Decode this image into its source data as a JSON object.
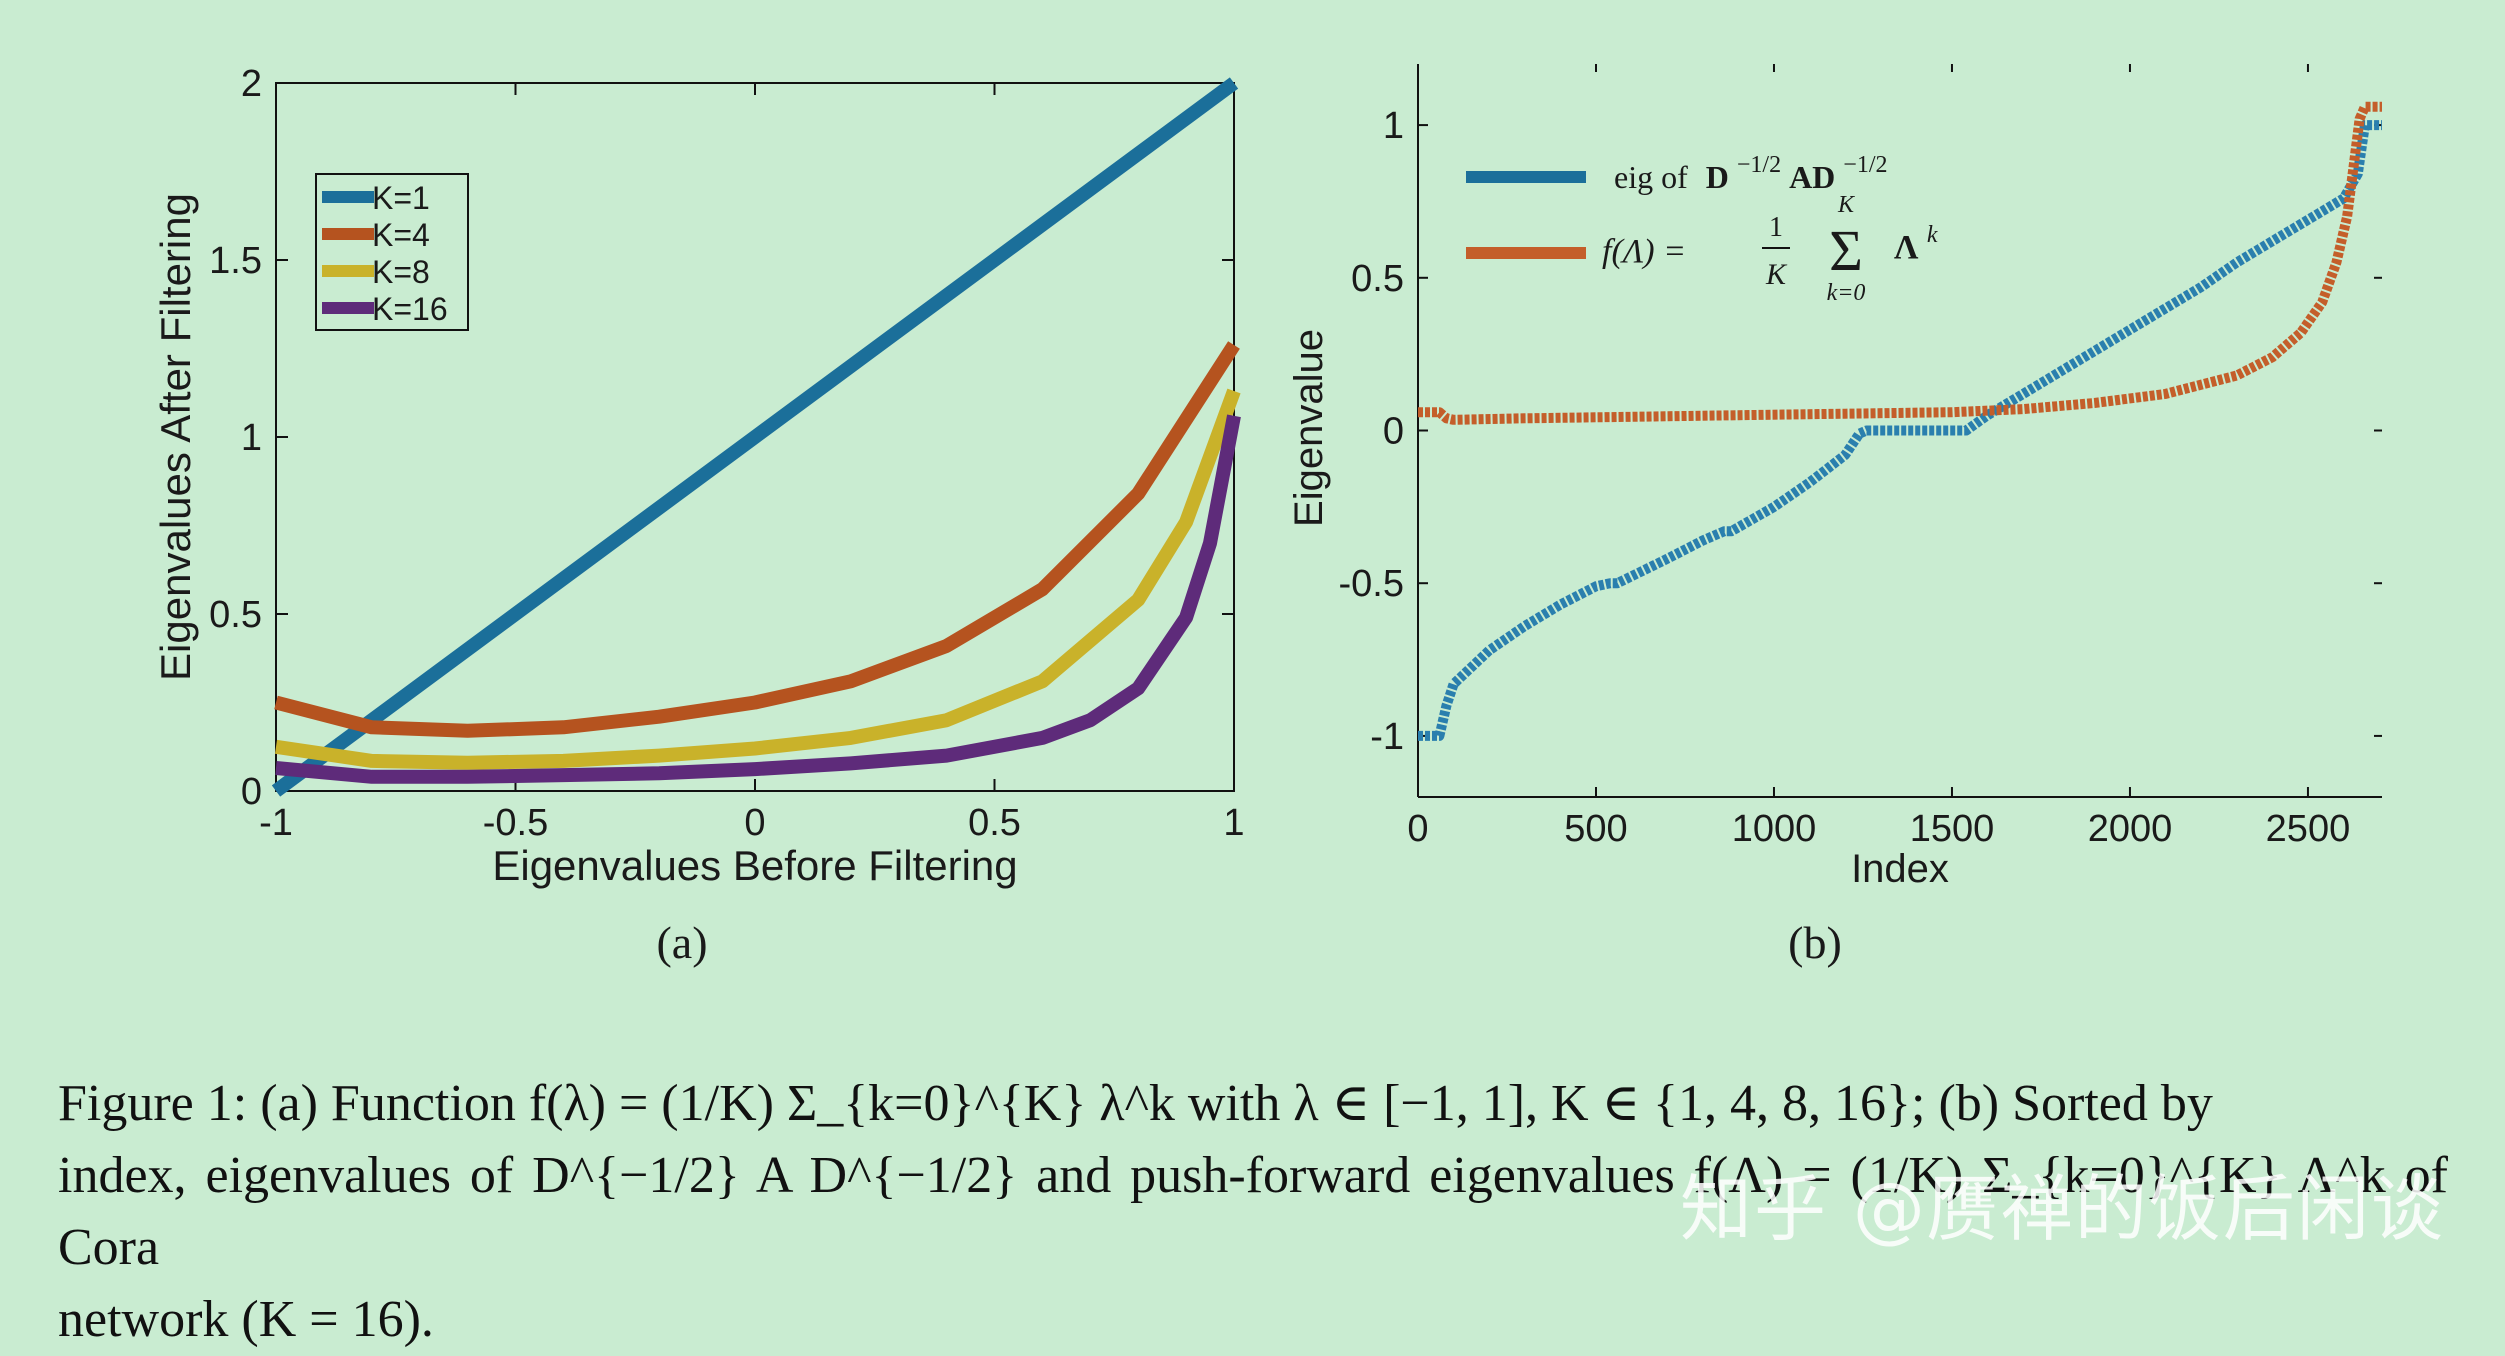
{
  "chart_data": [
    {
      "type": "line",
      "panel_label": "(a)",
      "xlabel": "Eigenvalues Before Filtering",
      "ylabel": "Eigenvalues After Filtering",
      "xlim": [
        -1,
        1
      ],
      "ylim": [
        0,
        2
      ],
      "xticks": [
        "-1",
        "-0.5",
        "0",
        "0.5",
        "1"
      ],
      "xtick_values": [
        -1,
        -0.5,
        0,
        0.5,
        1
      ],
      "yticks": [
        "0",
        "0.5",
        "1",
        "1.5",
        "2"
      ],
      "ytick_values": [
        0,
        0.5,
        1,
        1.5,
        2
      ],
      "legend_position": "top-left",
      "series": [
        {
          "name": "K=1",
          "color": "#1b6f9a",
          "x": [
            -1,
            -0.5,
            0,
            0.5,
            1
          ],
          "y": [
            0,
            0.5,
            1.0,
            1.5,
            2.0
          ]
        },
        {
          "name": "K=4",
          "color": "#b5531f",
          "x": [
            -1,
            -0.8,
            -0.6,
            -0.4,
            -0.2,
            0,
            0.2,
            0.4,
            0.6,
            0.8,
            1
          ],
          "y": [
            0.25,
            0.18,
            0.17,
            0.18,
            0.21,
            0.25,
            0.31,
            0.41,
            0.57,
            0.84,
            1.26
          ]
        },
        {
          "name": "K=8",
          "color": "#c9b22a",
          "x": [
            -1,
            -0.8,
            -0.6,
            -0.4,
            -0.2,
            0,
            0.2,
            0.4,
            0.6,
            0.8,
            0.9,
            1
          ],
          "y": [
            0.125,
            0.085,
            0.08,
            0.085,
            0.1,
            0.12,
            0.15,
            0.2,
            0.31,
            0.54,
            0.76,
            1.13
          ]
        },
        {
          "name": "K=16",
          "color": "#5e2b7a",
          "x": [
            -1,
            -0.8,
            -0.6,
            -0.4,
            -0.2,
            0,
            0.2,
            0.4,
            0.6,
            0.7,
            0.8,
            0.9,
            0.95,
            1
          ],
          "y": [
            0.065,
            0.04,
            0.04,
            0.045,
            0.05,
            0.062,
            0.078,
            0.1,
            0.15,
            0.2,
            0.29,
            0.49,
            0.7,
            1.06
          ]
        }
      ]
    },
    {
      "type": "line",
      "panel_label": "(b)",
      "xlabel": "Index",
      "ylabel": "Eigenvalue",
      "xlim": [
        0,
        2708
      ],
      "ylim": [
        -1.2,
        1.2
      ],
      "xticks": [
        "0",
        "500",
        "1000",
        "1500",
        "2000",
        "2500"
      ],
      "xtick_values": [
        0,
        500,
        1000,
        1500,
        2000,
        2500
      ],
      "yticks": [
        "-1",
        "-0.5",
        "0",
        "0.5",
        "1"
      ],
      "ytick_values": [
        -1,
        -0.5,
        0,
        0.5,
        1
      ],
      "legend_position": "top-left",
      "series": [
        {
          "name": "eig of D^{-1/2} A D^{-1/2}",
          "color": "#2a7fae",
          "x": [
            0,
            60,
            80,
            100,
            200,
            300,
            400,
            500,
            540,
            560,
            700,
            800,
            860,
            880,
            1000,
            1100,
            1200,
            1240,
            1260,
            1540,
            1600,
            1700,
            1800,
            1900,
            2000,
            2100,
            2200,
            2300,
            2400,
            2500,
            2600,
            2640,
            2660,
            2708
          ],
          "y": [
            -1.0,
            -1.0,
            -0.9,
            -0.83,
            -0.72,
            -0.64,
            -0.57,
            -0.51,
            -0.5,
            -0.5,
            -0.42,
            -0.36,
            -0.33,
            -0.33,
            -0.25,
            -0.17,
            -0.08,
            -0.01,
            0.0,
            0.0,
            0.05,
            0.12,
            0.19,
            0.26,
            0.33,
            0.4,
            0.47,
            0.55,
            0.62,
            0.69,
            0.76,
            0.84,
            1.0,
            1.0
          ]
        },
        {
          "name": "f(Λ) = (1/K) Σ_{k=0}^{K} Λ^k",
          "color": "#c45e2a",
          "x": [
            0,
            60,
            80,
            100,
            300,
            600,
            900,
            1200,
            1500,
            1700,
            1900,
            2100,
            2300,
            2400,
            2480,
            2540,
            2580,
            2610,
            2630,
            2645,
            2660,
            2708
          ],
          "y": [
            0.06,
            0.06,
            0.04,
            0.035,
            0.04,
            0.045,
            0.05,
            0.055,
            0.06,
            0.07,
            0.09,
            0.12,
            0.18,
            0.24,
            0.32,
            0.42,
            0.55,
            0.7,
            0.88,
            1.02,
            1.06,
            1.06
          ]
        }
      ]
    }
  ],
  "legend_b": {
    "eig_prefix": "eig of",
    "eig_matrix": "D",
    "eig_exp": "−1/2",
    "eig_mid": "AD",
    "eig_exp2": "−1/2",
    "f_lhs": "f(Λ) =",
    "f_num": "1",
    "f_den": "K",
    "f_sum": "Σ",
    "f_sum_top": "K",
    "f_sum_bottom": "k=0",
    "f_term": "Λ",
    "f_term_exp": "k"
  },
  "caption": {
    "line1": "Figure 1: (a) Function f(λ) = (1/K) Σ_{k=0}^{K} λ^k with λ ∈ [−1, 1], K ∈ {1, 4, 8, 16}; (b) Sorted by",
    "line2": "index, eigenvalues of D^{−1/2} A D^{−1/2} and push-forward eigenvalues f(Λ) = (1/K) Σ_{k=0}^{K} Λ^k of Cora",
    "line3": "network (K = 16)."
  },
  "watermark": "知乎 @赝禅的饭后闲谈"
}
